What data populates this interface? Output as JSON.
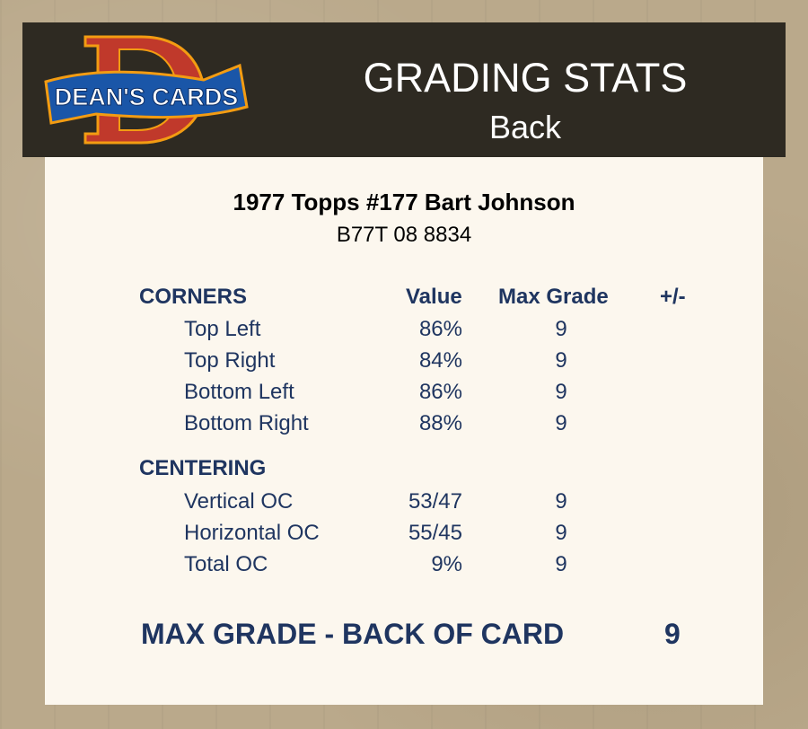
{
  "header": {
    "logo_text": "DEAN'S CARDS",
    "title": "GRADING STATS",
    "subtitle": "Back"
  },
  "card": {
    "title": "1977 Topps #177 Bart Johnson",
    "cert": "B77T 08 8834"
  },
  "columns": {
    "value": "Value",
    "max_grade": "Max Grade",
    "plus_minus": "+/-"
  },
  "corners": {
    "label": "CORNERS",
    "rows": [
      {
        "label": "Top Left",
        "value": "86%",
        "max_grade": "9"
      },
      {
        "label": "Top Right",
        "value": "84%",
        "max_grade": "9"
      },
      {
        "label": "Bottom Left",
        "value": "86%",
        "max_grade": "9"
      },
      {
        "label": "Bottom Right",
        "value": "88%",
        "max_grade": "9"
      }
    ]
  },
  "centering": {
    "label": "CENTERING",
    "rows": [
      {
        "label": "Vertical OC",
        "value": "53/47",
        "max_grade": "9"
      },
      {
        "label": "Horizontal OC",
        "value": "55/45",
        "max_grade": "9"
      },
      {
        "label": "Total OC",
        "value": "9%",
        "max_grade": "9"
      }
    ]
  },
  "summary": {
    "label": "MAX GRADE - BACK OF CARD",
    "value": "9"
  },
  "colors": {
    "text_blue": "#1f3560",
    "header_bg": "#2e2a22",
    "panel_bg": "#fcf7ee",
    "logo_red": "#c0392b",
    "logo_blue": "#1a56a8"
  }
}
